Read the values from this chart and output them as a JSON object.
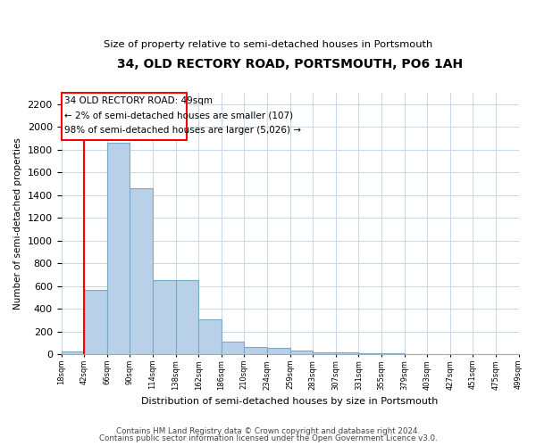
{
  "title": "34, OLD RECTORY ROAD, PORTSMOUTH, PO6 1AH",
  "subtitle": "Size of property relative to semi-detached houses in Portsmouth",
  "xlabel": "Distribution of semi-detached houses by size in Portsmouth",
  "ylabel": "Number of semi-detached properties",
  "footnote1": "Contains HM Land Registry data © Crown copyright and database right 2024.",
  "footnote2": "Contains public sector information licensed under the Open Government Licence v3.0.",
  "annotation_title": "34 OLD RECTORY ROAD: 49sqm",
  "annotation_line2": "← 2% of semi-detached houses are smaller (107)",
  "annotation_line3": "98% of semi-detached houses are larger (5,026) →",
  "bar_color": "#b8d0e8",
  "bar_edge_color": "#7aaac8",
  "bins": [
    "18sqm",
    "42sqm",
    "66sqm",
    "90sqm",
    "114sqm",
    "138sqm",
    "162sqm",
    "186sqm",
    "210sqm",
    "234sqm",
    "259sqm",
    "283sqm",
    "307sqm",
    "331sqm",
    "355sqm",
    "379sqm",
    "403sqm",
    "427sqm",
    "451sqm",
    "475sqm",
    "499sqm"
  ],
  "values": [
    25,
    570,
    1860,
    1460,
    650,
    650,
    310,
    115,
    65,
    55,
    30,
    20,
    15,
    10,
    8,
    5,
    3,
    2,
    1,
    0
  ],
  "ylim": [
    0,
    2300
  ],
  "yticks": [
    0,
    200,
    400,
    600,
    800,
    1000,
    1200,
    1400,
    1600,
    1800,
    2000,
    2200
  ],
  "figsize": [
    6.0,
    5.0
  ],
  "dpi": 100
}
